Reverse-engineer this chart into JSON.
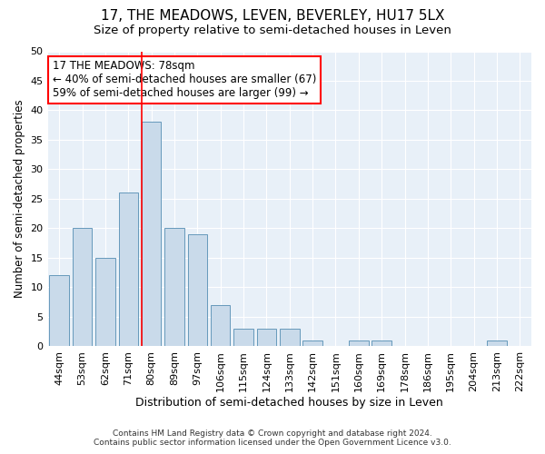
{
  "title": "17, THE MEADOWS, LEVEN, BEVERLEY, HU17 5LX",
  "subtitle": "Size of property relative to semi-detached houses in Leven",
  "xlabel": "Distribution of semi-detached houses by size in Leven",
  "ylabel": "Number of semi-detached properties",
  "categories": [
    "44sqm",
    "53sqm",
    "62sqm",
    "71sqm",
    "80sqm",
    "89sqm",
    "97sqm",
    "106sqm",
    "115sqm",
    "124sqm",
    "133sqm",
    "142sqm",
    "151sqm",
    "160sqm",
    "169sqm",
    "178sqm",
    "186sqm",
    "195sqm",
    "204sqm",
    "213sqm",
    "222sqm"
  ],
  "values": [
    12,
    20,
    15,
    26,
    38,
    20,
    19,
    7,
    3,
    3,
    3,
    1,
    0,
    1,
    1,
    0,
    0,
    0,
    0,
    1,
    0
  ],
  "bar_color": "#c9daea",
  "bar_edge_color": "#6699bb",
  "highlight_line_index": 4,
  "annotation_line1": "17 THE MEADOWS: 78sqm",
  "annotation_line2": "← 40% of semi-detached houses are smaller (67)",
  "annotation_line3": "59% of semi-detached houses are larger (99) →",
  "annotation_box_color": "white",
  "annotation_box_edge_color": "red",
  "ylim": [
    0,
    50
  ],
  "yticks": [
    0,
    5,
    10,
    15,
    20,
    25,
    30,
    35,
    40,
    45,
    50
  ],
  "footer_line1": "Contains HM Land Registry data © Crown copyright and database right 2024.",
  "footer_line2": "Contains public sector information licensed under the Open Government Licence v3.0.",
  "bg_color": "#ffffff",
  "plot_bg_color": "#e8f0f8",
  "grid_color": "white",
  "title_fontsize": 11,
  "subtitle_fontsize": 9.5,
  "xlabel_fontsize": 9,
  "ylabel_fontsize": 8.5,
  "tick_fontsize": 8,
  "footer_fontsize": 6.5,
  "annotation_fontsize": 8.5
}
